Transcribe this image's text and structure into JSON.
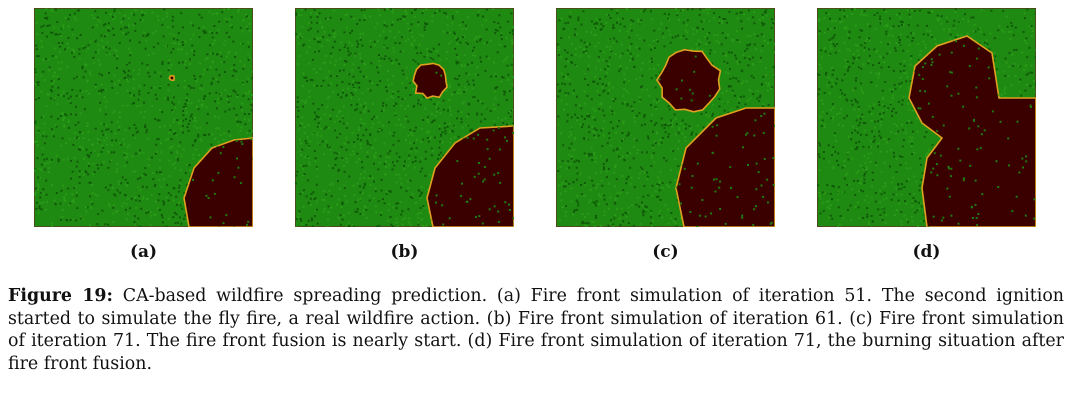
{
  "figure": {
    "label": "Figure 19:",
    "caption": "CA-based wildfire spreading prediction. (a) Fire front simulation of iteration 51. The second ignition started to simulate the fly fire, a real wildfire action. (b) Fire front simulation of iteration 61. (c) Fire front simulation of iteration 71. The fire front fusion is nearly start. (d) Fire front simulation of iteration 71, the burning situation after fire front fusion.",
    "panels": [
      {
        "label": "(a)",
        "iteration": 51
      },
      {
        "label": "(b)",
        "iteration": 61
      },
      {
        "label": "(c)",
        "iteration": 71
      },
      {
        "label": "(d)",
        "iteration": 71
      }
    ]
  },
  "colors": {
    "vegetation": "#1f8a12",
    "vegetation_dark": "#0f5a08",
    "burnt": "#3a0000",
    "front": "#e0a020"
  }
}
